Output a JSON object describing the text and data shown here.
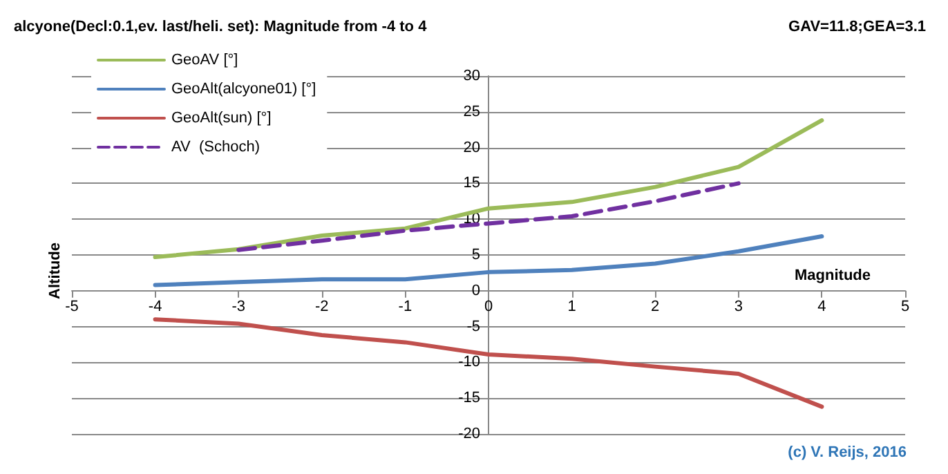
{
  "chart_data": {
    "type": "line",
    "title": "alcyone(Decl:0.1,ev. last/heli. set): Magnitude from -4 to 4",
    "xlabel": "Magnitude",
    "ylabel": "Altitude",
    "annotations": [
      "GAV=11.8;GEA=3.1",
      "(c) V. Reijs, 2016"
    ],
    "x": [
      -4,
      -3,
      -2,
      -1,
      0,
      1,
      2,
      3,
      4
    ],
    "series": [
      {
        "name": "GeoAV [°]",
        "color": "#9bbb59",
        "values": [
          4.7,
          5.8,
          7.7,
          8.7,
          11.5,
          12.4,
          14.5,
          17.3,
          23.8
        ]
      },
      {
        "name": "GeoAlt(alcyone01) [°]",
        "color": "#4f81bd",
        "values": [
          0.8,
          1.2,
          1.6,
          1.6,
          2.6,
          2.9,
          3.8,
          5.5,
          7.6
        ]
      },
      {
        "name": "GeoAlt(sun) [°]",
        "color": "#c0504d",
        "values": [
          -4,
          -4.6,
          -6.2,
          -7.2,
          -8.9,
          -9.5,
          -10.6,
          -11.6,
          -16.2
        ]
      },
      {
        "name": "AV  (Schoch)",
        "color": "#7030a0",
        "line_style": "dashed",
        "x": [
          -3,
          -2,
          -1,
          0,
          1,
          2,
          3
        ],
        "values": [
          5.7,
          7.0,
          8.4,
          9.4,
          10.4,
          12.5,
          15.0
        ]
      }
    ],
    "xlim": [
      -5,
      5
    ],
    "xticks": [
      -5,
      -4,
      -3,
      -2,
      -1,
      0,
      1,
      2,
      3,
      4,
      5
    ],
    "ylim": [
      -20,
      30
    ],
    "yticks": [
      -20,
      -15,
      -10,
      -5,
      0,
      5,
      10,
      15,
      20,
      25,
      30
    ],
    "grid": "y",
    "legend": "top left",
    "marker": "none",
    "line_style": "solid"
  }
}
